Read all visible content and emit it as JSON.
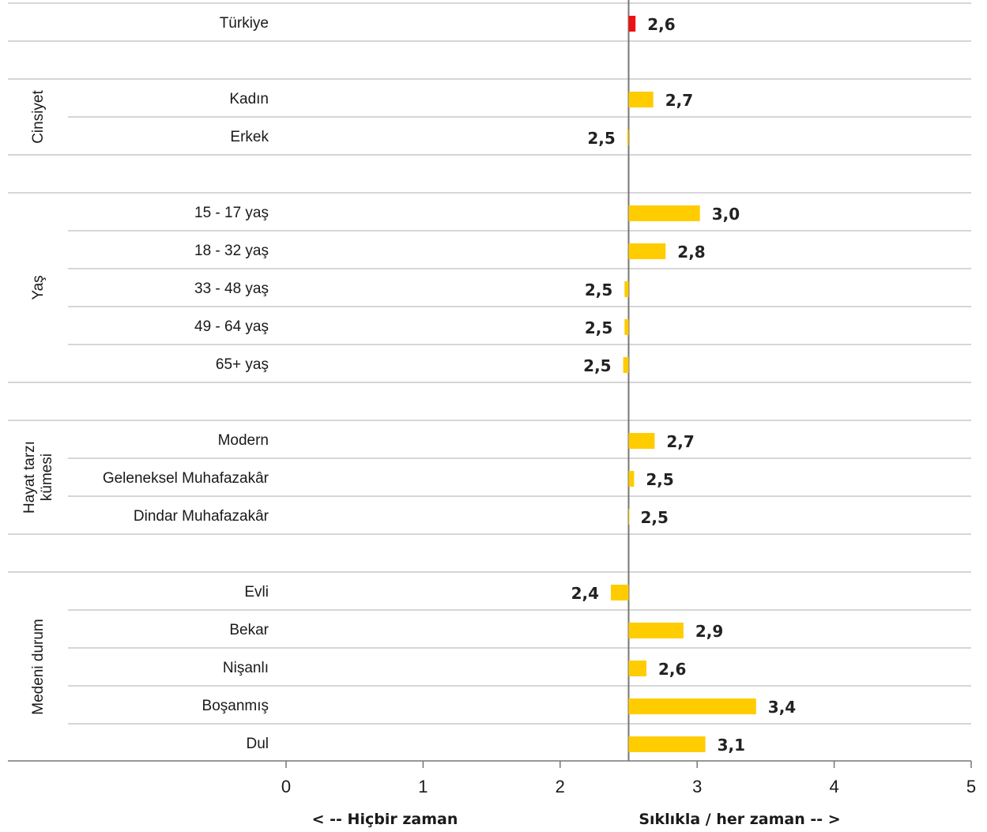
{
  "chart_data": {
    "type": "bar",
    "orientation": "horizontal",
    "baseline": 2.5,
    "xlim": [
      0,
      5
    ],
    "ticks": [
      "0",
      "1",
      "2",
      "3",
      "4",
      "5"
    ],
    "axis_notes": {
      "left": "< -- Hiçbir zaman",
      "right": "Sıklıkla / her zaman -- >"
    },
    "groups": [
      {
        "label": "",
        "lines": [],
        "rows": [
          {
            "label": "Türkiye",
            "value": 2.55,
            "display": "2,6",
            "highlight": true
          }
        ]
      },
      {
        "label": "Cinsiyet",
        "lines": [
          "Cinsiyet"
        ],
        "rows": [
          {
            "label": "Kadın",
            "value": 2.68,
            "display": "2,7"
          },
          {
            "label": "Erkek",
            "value": 2.49,
            "display": "2,5"
          }
        ]
      },
      {
        "label": "Yaş",
        "lines": [
          "Yaş"
        ],
        "rows": [
          {
            "label": "15 - 17 yaş",
            "value": 3.02,
            "display": "3,0"
          },
          {
            "label": "18 - 32 yaş",
            "value": 2.77,
            "display": "2,8"
          },
          {
            "label": "33 - 48 yaş",
            "value": 2.47,
            "display": "2,5"
          },
          {
            "label": "49 - 64 yaş",
            "value": 2.47,
            "display": "2,5"
          },
          {
            "label": "65+ yaş",
            "value": 2.46,
            "display": "2,5"
          }
        ]
      },
      {
        "label": "Hayat tarzı kümesi",
        "lines": [
          "Hayat tarzı",
          "kümesi"
        ],
        "rows": [
          {
            "label": "Modern",
            "value": 2.69,
            "display": "2,7"
          },
          {
            "label": "Geleneksel Muhafazakâr",
            "value": 2.54,
            "display": "2,5"
          },
          {
            "label": "Dindar Muhafazakâr",
            "value": 2.5,
            "display": "2,5"
          }
        ]
      },
      {
        "label": "Medeni durum",
        "lines": [
          "Medeni durum"
        ],
        "rows": [
          {
            "label": "Evli",
            "value": 2.37,
            "display": "2,4"
          },
          {
            "label": "Bekar",
            "value": 2.9,
            "display": "2,9"
          },
          {
            "label": "Nişanlı",
            "value": 2.63,
            "display": "2,6"
          },
          {
            "label": "Boşanmış",
            "value": 3.43,
            "display": "3,4"
          },
          {
            "label": "Dul",
            "value": 3.06,
            "display": "3,1"
          }
        ]
      }
    ],
    "colors": {
      "bar": "#ffcc00",
      "highlight": "#ee1111",
      "grid": "#c8c8c8",
      "axis": "#777777"
    }
  }
}
